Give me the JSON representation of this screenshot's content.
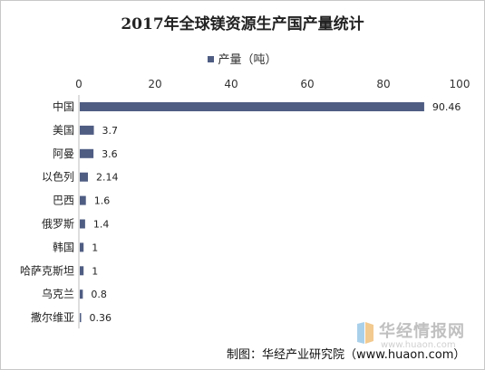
{
  "chart_data": {
    "type": "bar",
    "orientation": "horizontal",
    "title": "2017年全球镁资源生产国产量统计",
    "legend": {
      "label": "产量（吨）",
      "placement": "top"
    },
    "categories": [
      "中国",
      "美国",
      "阿曼",
      "以色列",
      "巴西",
      "俄罗斯",
      "韩国",
      "哈萨克斯坦",
      "乌克兰",
      "撒尔维亚"
    ],
    "series": [
      {
        "name": "产量（吨）",
        "values": [
          90.46,
          3.7,
          3.6,
          2.14,
          1.6,
          1.4,
          1,
          1,
          0.8,
          0.36
        ],
        "labels": [
          "90.46",
          "3.7",
          "3.6",
          "2.14",
          "1.6",
          "1.4",
          "1",
          "1",
          "0.8",
          "0.36"
        ]
      }
    ],
    "xaxis": {
      "position": "top",
      "range": [
        0,
        100
      ],
      "ticks": [
        "0",
        "20",
        "40",
        "60",
        "80",
        "100"
      ]
    },
    "grid": false,
    "bar_color": "#4f5d83"
  },
  "watermark": {
    "text": "华经情报网",
    "url": "www.huaon.com"
  },
  "source": "制图：华经产业研究院（www.huaon.com）"
}
